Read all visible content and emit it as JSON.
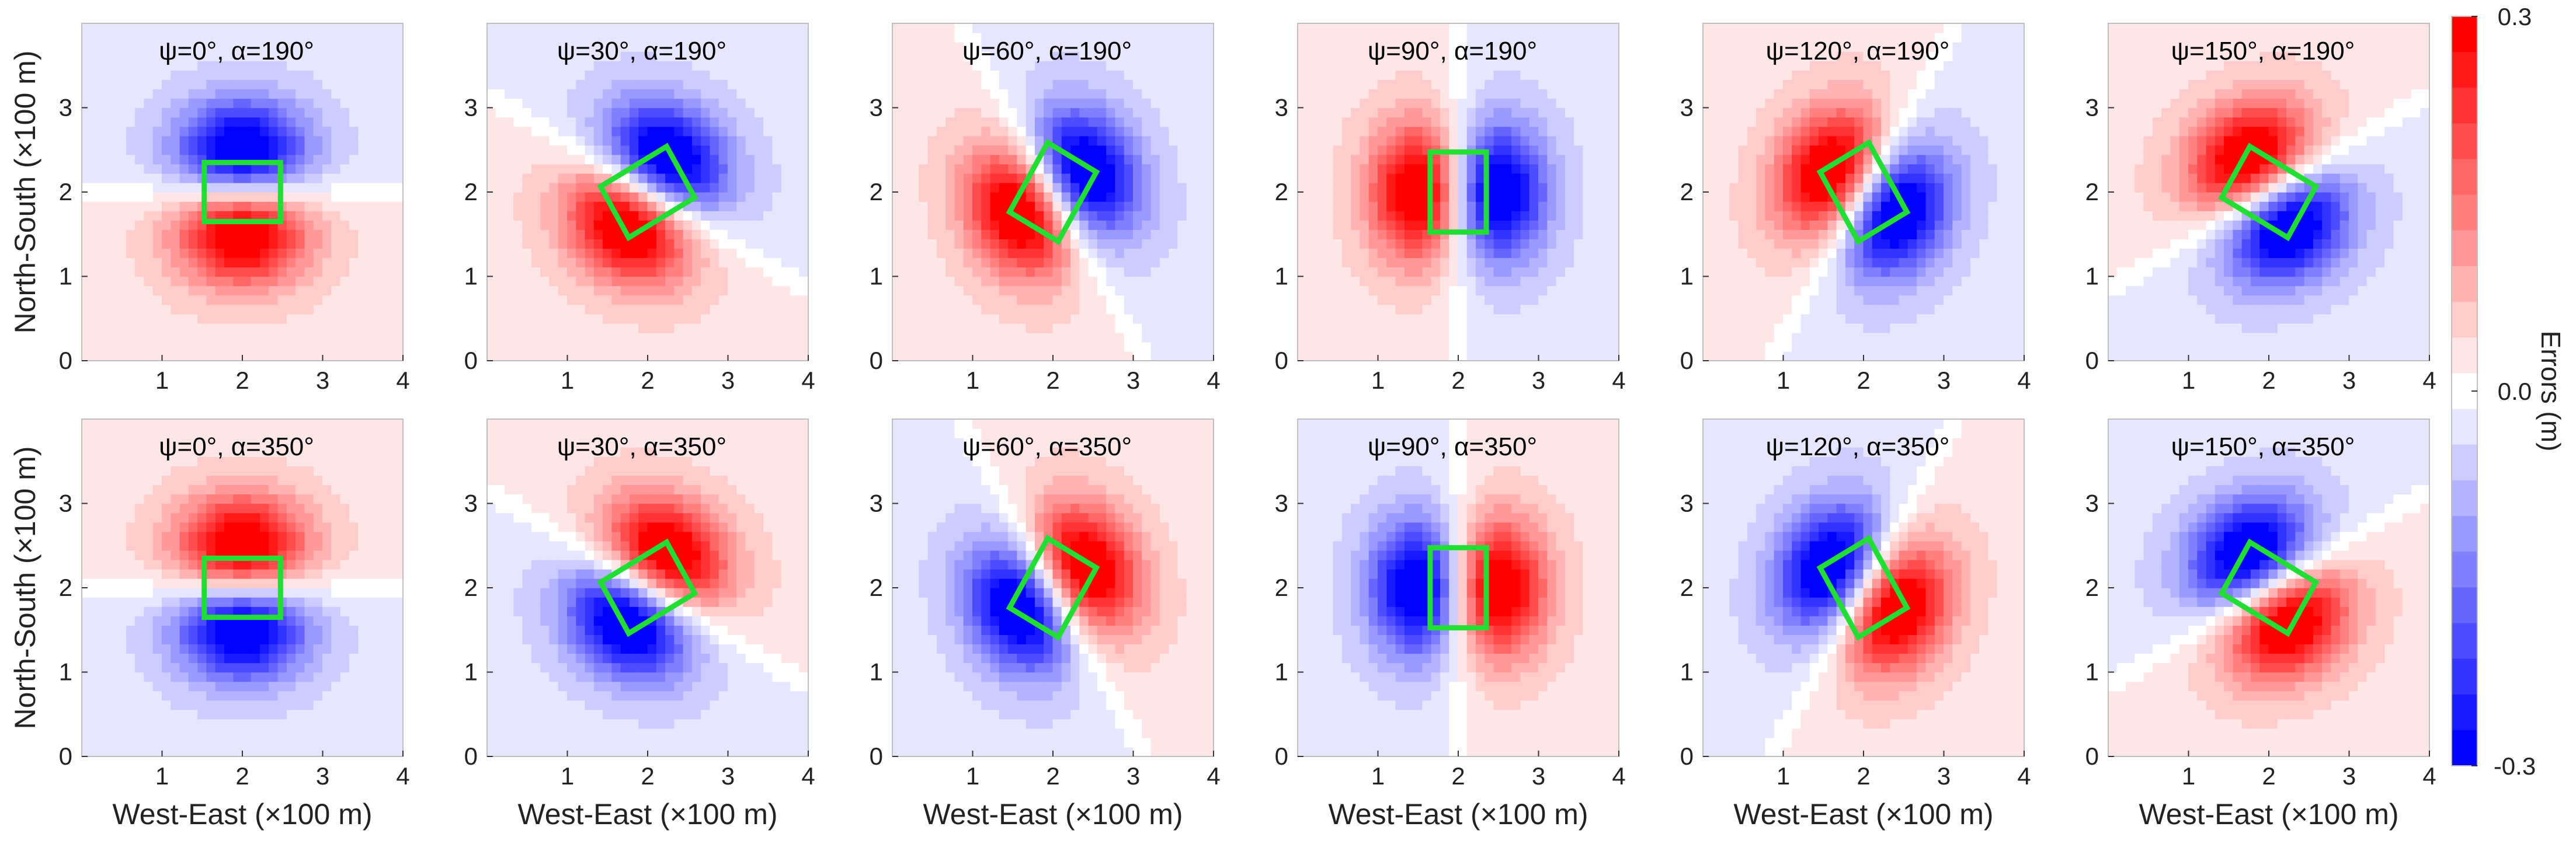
{
  "chart_data": {
    "type": "heatmap",
    "description_text": {
      "xlabel": "West-East (×100 m)",
      "ylabel": "North-South (×100 m)",
      "colorbar_label": "Errors (m)"
    },
    "x_range": [
      0,
      4
    ],
    "y_range": [
      0,
      4
    ],
    "x_ticks": [
      1,
      2,
      3,
      4
    ],
    "y_ticks": [
      0,
      1,
      2,
      3
    ],
    "x_tick_labels": [
      "1",
      "2",
      "3",
      "4"
    ],
    "y_tick_labels": [
      "0",
      "1",
      "2",
      "3"
    ],
    "colorbar": {
      "min": -0.3,
      "max": 0.3,
      "levels": 21,
      "tick_labels": [
        "0.3",
        "0.0",
        "-0.3"
      ],
      "tick_values": [
        0.3,
        0.0,
        -0.3
      ],
      "colormap": "blue-white-red"
    },
    "rectangle": {
      "center": [
        2,
        2
      ],
      "length": 1.0,
      "width": 0.7,
      "color": "#22dd33"
    },
    "panels": [
      {
        "row": 0,
        "col": 0,
        "title": "ψ=0°, α=190°",
        "psi": 0,
        "alpha": 190
      },
      {
        "row": 0,
        "col": 1,
        "title": "ψ=30°, α=190°",
        "psi": 30,
        "alpha": 190
      },
      {
        "row": 0,
        "col": 2,
        "title": "ψ=60°, α=190°",
        "psi": 60,
        "alpha": 190
      },
      {
        "row": 0,
        "col": 3,
        "title": "ψ=90°, α=190°",
        "psi": 90,
        "alpha": 190
      },
      {
        "row": 0,
        "col": 4,
        "title": "ψ=120°, α=190°",
        "psi": 120,
        "alpha": 190
      },
      {
        "row": 0,
        "col": 5,
        "title": "ψ=150°, α=190°",
        "psi": 150,
        "alpha": 190
      },
      {
        "row": 1,
        "col": 0,
        "title": "ψ=0°, α=350°",
        "psi": 0,
        "alpha": 350
      },
      {
        "row": 1,
        "col": 1,
        "title": "ψ=30°, α=350°",
        "psi": 30,
        "alpha": 350
      },
      {
        "row": 1,
        "col": 2,
        "title": "ψ=60°, α=350°",
        "psi": 60,
        "alpha": 350
      },
      {
        "row": 1,
        "col": 3,
        "title": "ψ=90°, α=350°",
        "psi": 90,
        "alpha": 350
      },
      {
        "row": 1,
        "col": 4,
        "title": "ψ=120°, α=350°",
        "psi": 120,
        "alpha": 350
      },
      {
        "row": 1,
        "col": 5,
        "title": "ψ=150°, α=350°",
        "psi": 150,
        "alpha": 350
      }
    ]
  }
}
